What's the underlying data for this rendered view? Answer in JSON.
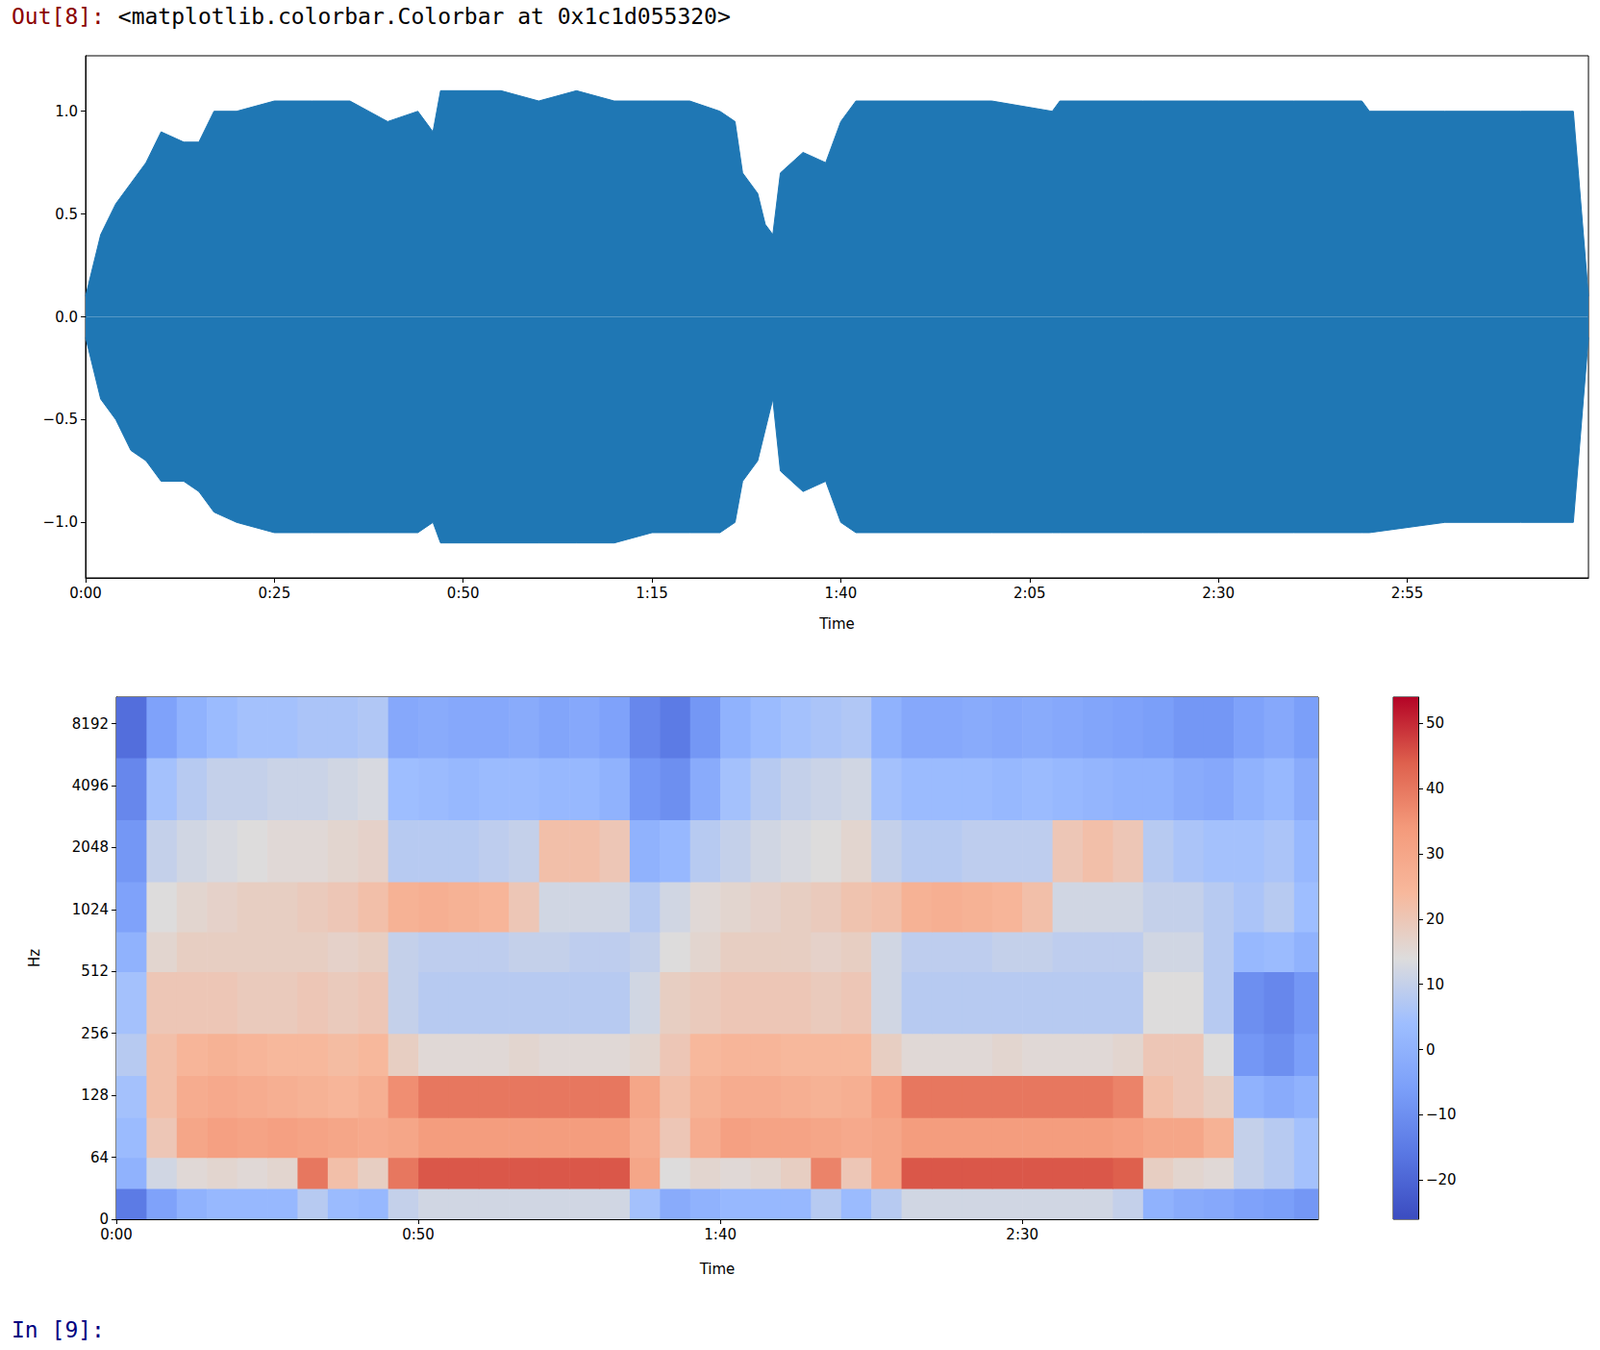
{
  "notebook": {
    "output_prompt": "Out[8]:",
    "output_text": "<matplotlib.colorbar.Colorbar at 0x1c1d055320>",
    "input_prompt": "In [9]:"
  },
  "chart_data": [
    {
      "type": "waveform",
      "x_label": "Time",
      "color": "#1f77b4",
      "time": [
        0,
        2,
        4,
        6,
        8,
        10,
        13,
        15,
        17,
        20,
        25,
        30,
        35,
        40,
        44,
        46,
        47,
        55,
        60,
        65,
        70,
        75,
        80,
        84,
        86,
        87,
        89,
        90,
        91,
        92,
        95,
        98,
        100,
        102,
        110,
        120,
        128,
        129,
        140,
        150,
        160,
        169,
        170,
        180,
        190,
        197,
        199
      ],
      "upper": [
        0.1,
        0.4,
        0.55,
        0.65,
        0.75,
        0.9,
        0.85,
        0.85,
        1.0,
        1.0,
        1.05,
        1.05,
        1.05,
        0.95,
        1.0,
        0.9,
        1.1,
        1.1,
        1.05,
        1.1,
        1.05,
        1.05,
        1.05,
        1.0,
        0.95,
        0.7,
        0.6,
        0.45,
        0.4,
        0.7,
        0.8,
        0.75,
        0.95,
        1.05,
        1.05,
        1.05,
        1.0,
        1.05,
        1.05,
        1.05,
        1.05,
        1.05,
        1.0,
        1.0,
        1.0,
        1.0,
        0.1
      ],
      "lower": [
        -0.1,
        -0.4,
        -0.5,
        -0.65,
        -0.7,
        -0.8,
        -0.8,
        -0.85,
        -0.95,
        -1.0,
        -1.05,
        -1.05,
        -1.05,
        -1.05,
        -1.05,
        -1.0,
        -1.1,
        -1.1,
        -1.1,
        -1.1,
        -1.1,
        -1.05,
        -1.05,
        -1.05,
        -1.0,
        -0.8,
        -0.7,
        -0.55,
        -0.4,
        -0.75,
        -0.85,
        -0.8,
        -1.0,
        -1.05,
        -1.05,
        -1.05,
        -1.05,
        -1.05,
        -1.05,
        -1.05,
        -1.05,
        -1.05,
        -1.05,
        -1.0,
        -1.0,
        -1.0,
        -0.1
      ],
      "xlim": [
        0,
        199
      ],
      "xticks": [
        {
          "value": 0,
          "label": "0:00"
        },
        {
          "value": 25,
          "label": "0:25"
        },
        {
          "value": 50,
          "label": "0:50"
        },
        {
          "value": 75,
          "label": "1:15"
        },
        {
          "value": 100,
          "label": "1:40"
        },
        {
          "value": 125,
          "label": "2:05"
        },
        {
          "value": 150,
          "label": "2:30"
        },
        {
          "value": 175,
          "label": "2:55"
        }
      ],
      "ylim": [
        -1.27,
        1.27
      ],
      "yticks": [
        {
          "value": -1.0,
          "label": "−1.0"
        },
        {
          "value": -0.5,
          "label": "−0.5"
        },
        {
          "value": 0,
          "label": "0.0"
        },
        0.5,
        {
          "value": 1.0,
          "label": "1.0"
        }
      ]
    },
    {
      "type": "spectrogram",
      "x_label": "Time",
      "y_label": "Hz",
      "log": "y",
      "time_bins": [
        0,
        5,
        10,
        15,
        20,
        25,
        30,
        35,
        40,
        45,
        50,
        55,
        60,
        65,
        70,
        75,
        80,
        85,
        90,
        95,
        100,
        105,
        110,
        115,
        120,
        125,
        130,
        135,
        140,
        145,
        150,
        155,
        160,
        165,
        170,
        175,
        180,
        185,
        190,
        195,
        199
      ],
      "freq_bins": [
        0,
        32,
        64,
        100,
        160,
        256,
        512,
        800,
        1400,
        2800,
        5600,
        11025
      ],
      "cells": [
        [
          -15,
          -5,
          0,
          2,
          2,
          2,
          8,
          3,
          2,
          10,
          12,
          12,
          12,
          12,
          12,
          12,
          12,
          5,
          -2,
          0,
          2,
          2,
          2,
          8,
          3,
          8,
          12,
          12,
          12,
          12,
          12,
          12,
          12,
          10,
          0,
          -2,
          -3,
          -5,
          -6,
          -8
        ],
        [
          0,
          12,
          15,
          16,
          15,
          16,
          40,
          22,
          18,
          40,
          45,
          45,
          45,
          45,
          45,
          45,
          45,
          30,
          14,
          16,
          15,
          16,
          18,
          38,
          20,
          30,
          45,
          45,
          45,
          45,
          45,
          45,
          45,
          44,
          18,
          16,
          15,
          10,
          8,
          5
        ],
        [
          3,
          20,
          30,
          32,
          31,
          32,
          31,
          30,
          29,
          30,
          33,
          33,
          33,
          33,
          33,
          33,
          33,
          28,
          20,
          28,
          32,
          31,
          31,
          30,
          29,
          30,
          33,
          33,
          33,
          33,
          33,
          33,
          33,
          32,
          30,
          30,
          26,
          10,
          8,
          5
        ],
        [
          5,
          22,
          28,
          29,
          28,
          27,
          26,
          25,
          27,
          36,
          40,
          40,
          40,
          40,
          40,
          40,
          40,
          30,
          22,
          26,
          28,
          28,
          27,
          26,
          27,
          32,
          40,
          40,
          40,
          40,
          40,
          40,
          40,
          38,
          22,
          20,
          18,
          0,
          -2,
          0
        ],
        [
          8,
          22,
          25,
          26,
          25,
          24,
          24,
          23,
          24,
          18,
          15,
          15,
          15,
          16,
          15,
          15,
          15,
          16,
          20,
          24,
          25,
          25,
          24,
          24,
          24,
          18,
          15,
          15,
          15,
          16,
          15,
          15,
          15,
          16,
          20,
          20,
          14,
          -8,
          -10,
          -6
        ],
        [
          5,
          20,
          20,
          20,
          19,
          19,
          20,
          19,
          20,
          10,
          8,
          8,
          8,
          8,
          8,
          8,
          8,
          12,
          18,
          19,
          20,
          20,
          20,
          19,
          20,
          12,
          8,
          8,
          8,
          8,
          8,
          8,
          8,
          8,
          14,
          14,
          8,
          -10,
          -12,
          -8
        ],
        [
          0,
          16,
          18,
          18,
          18,
          18,
          18,
          17,
          18,
          10,
          9,
          9,
          9,
          10,
          10,
          9,
          9,
          10,
          14,
          16,
          18,
          18,
          18,
          17,
          18,
          12,
          9,
          9,
          9,
          10,
          10,
          9,
          9,
          9,
          12,
          12,
          8,
          2,
          3,
          0
        ],
        [
          -5,
          14,
          16,
          17,
          18,
          18,
          19,
          20,
          22,
          26,
          27,
          26,
          25,
          20,
          12,
          12,
          12,
          8,
          12,
          15,
          16,
          17,
          18,
          19,
          21,
          22,
          26,
          27,
          26,
          25,
          22,
          12,
          12,
          12,
          10,
          10,
          8,
          6,
          8,
          4
        ],
        [
          -8,
          10,
          12,
          13,
          14,
          15,
          15,
          16,
          17,
          8,
          8,
          8,
          9,
          10,
          22,
          22,
          20,
          0,
          2,
          8,
          10,
          12,
          13,
          14,
          16,
          10,
          8,
          8,
          9,
          9,
          9,
          20,
          22,
          20,
          8,
          6,
          5,
          5,
          6,
          2
        ],
        [
          -12,
          5,
          8,
          10,
          10,
          11,
          11,
          12,
          13,
          4,
          3,
          2,
          3,
          3,
          2,
          2,
          0,
          -8,
          -10,
          -2,
          5,
          8,
          10,
          11,
          12,
          5,
          3,
          3,
          3,
          2,
          3,
          2,
          1,
          0,
          0,
          -2,
          -3,
          0,
          2,
          -2
        ],
        [
          -18,
          -5,
          0,
          3,
          5,
          5,
          6,
          6,
          7,
          -3,
          -2,
          -3,
          -3,
          -2,
          -4,
          -3,
          -5,
          -12,
          -15,
          -8,
          0,
          3,
          5,
          6,
          7,
          0,
          -3,
          -3,
          -2,
          -3,
          -2,
          -3,
          -4,
          -5,
          -6,
          -8,
          -8,
          -5,
          -3,
          -6
        ]
      ],
      "xlim": [
        0,
        199
      ],
      "xticks": [
        {
          "value": 0,
          "label": "0:00"
        },
        {
          "value": 50,
          "label": "0:50"
        },
        {
          "value": 100,
          "label": "1:40"
        },
        {
          "value": 150,
          "label": "2:30"
        }
      ],
      "ylim": [
        0,
        11025
      ],
      "yticks": [
        0,
        64,
        128,
        256,
        512,
        1024,
        2048,
        4096,
        8192
      ],
      "colorbar": {
        "range": [
          -26,
          54
        ],
        "ticks": [
          {
            "value": -20,
            "label": "−20"
          },
          {
            "value": -10,
            "label": "−10"
          },
          0,
          10,
          20,
          30,
          40,
          50
        ]
      }
    }
  ]
}
